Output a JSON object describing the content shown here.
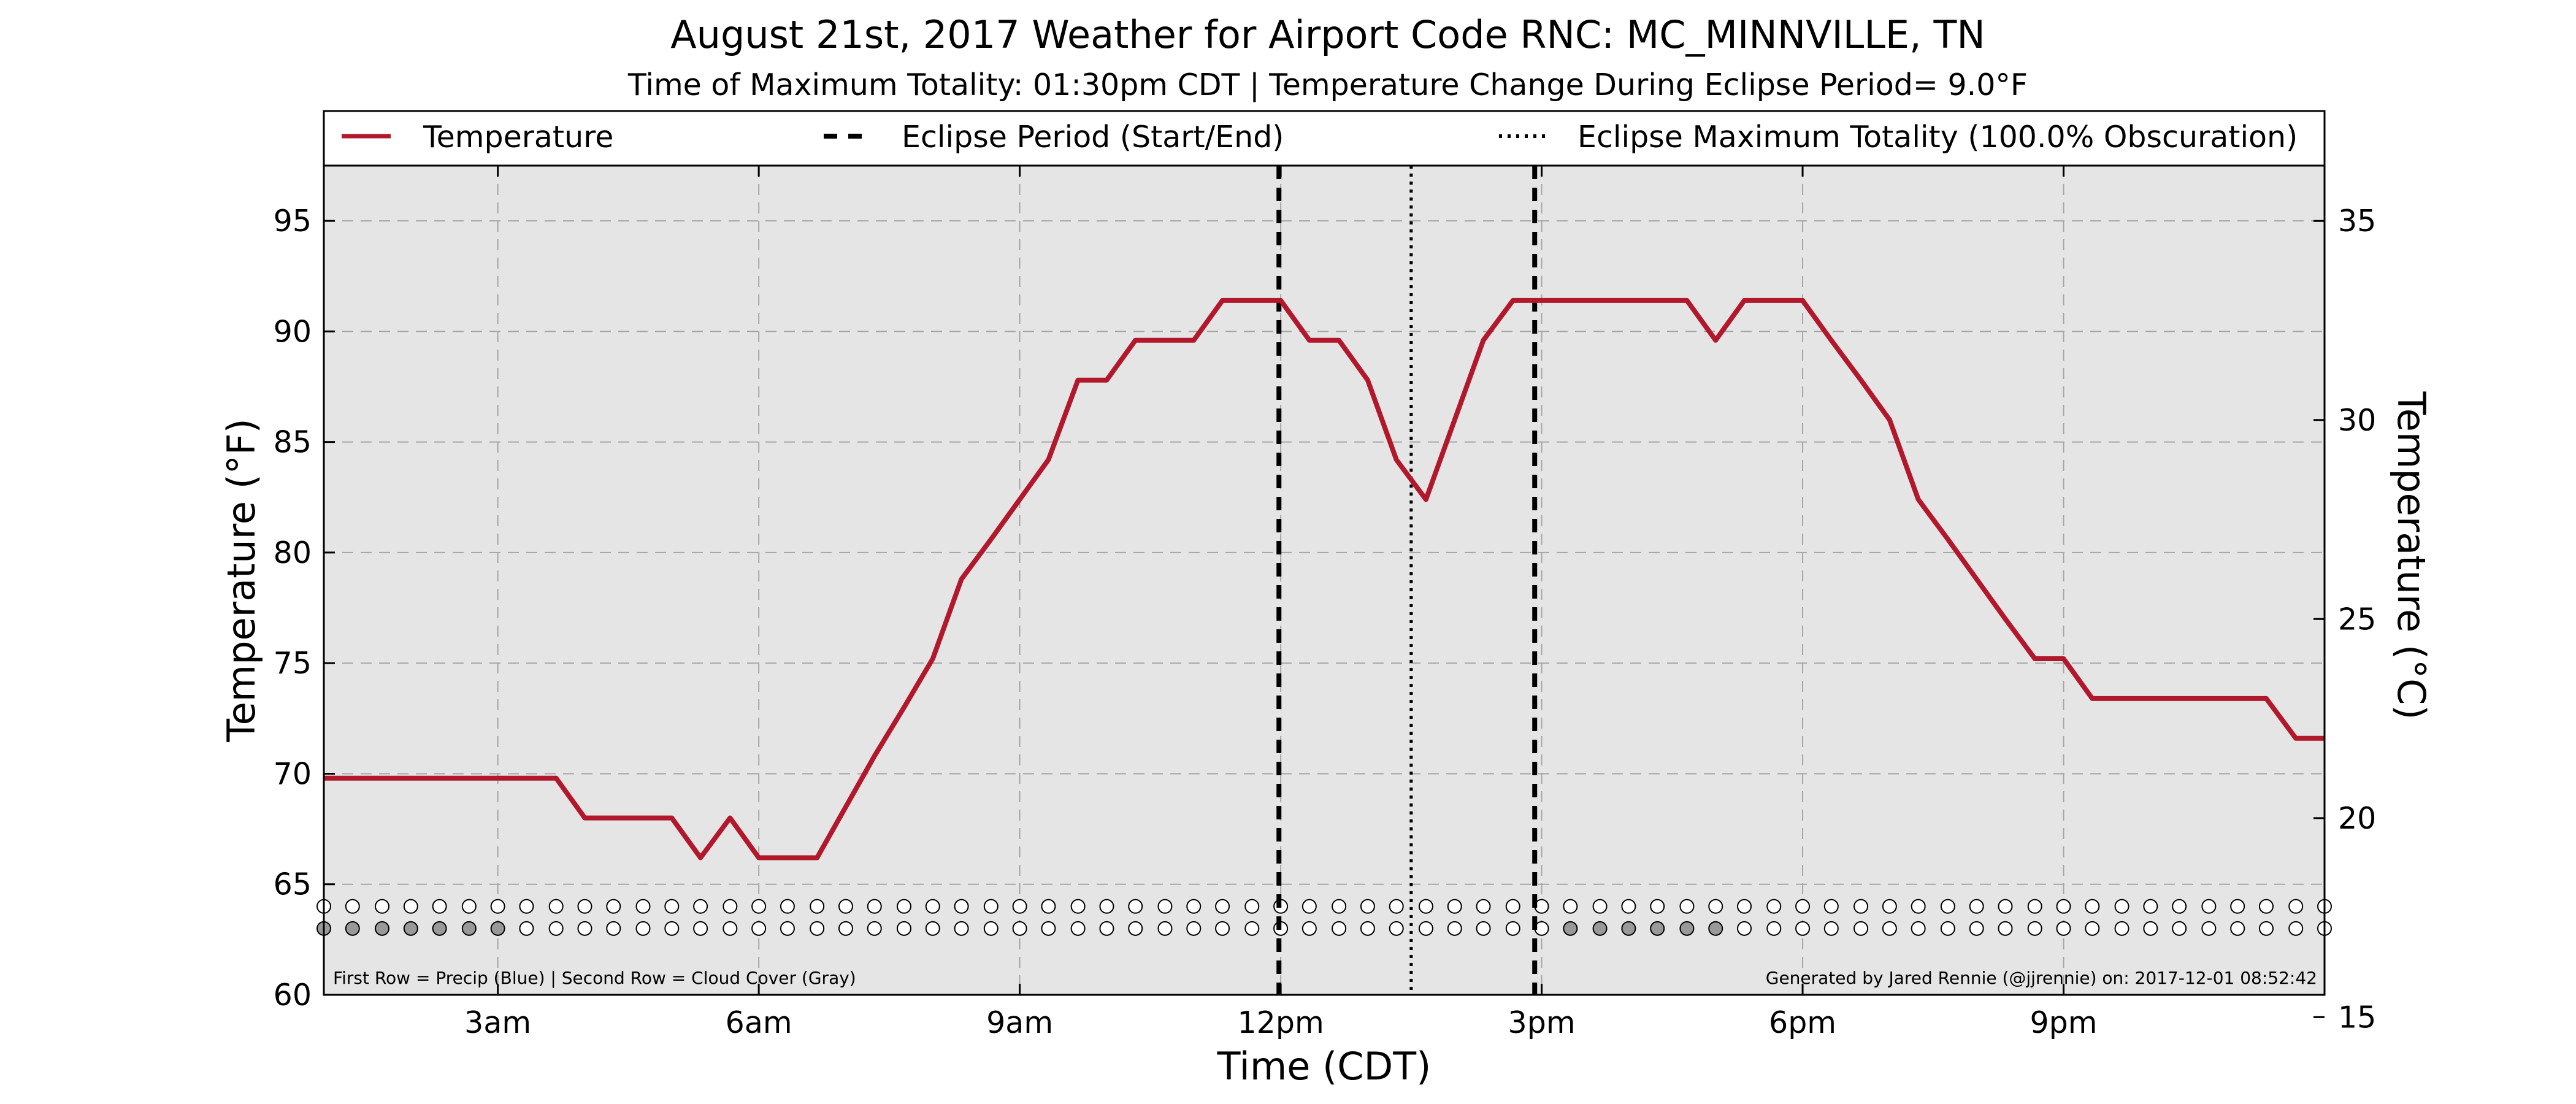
{
  "chart_data": {
    "type": "line",
    "title": "August 21st, 2017 Weather for Airport Code RNC: MC_MINNVILLE, TN",
    "subtitle": "Time of Maximum Totality: 01:30pm CDT | Temperature Change During Eclipse Period= 9.0°F",
    "xlabel": "Time (CDT)",
    "ylabel": "Temperature (°F)",
    "ylabel_right": "Temperature (°C)",
    "xlim": [
      1.0,
      24.0
    ],
    "ylim": [
      60,
      97.5
    ],
    "ylim_right": [
      15.56,
      36.39
    ],
    "x_ticks": [
      {
        "x": 3,
        "label": "3am"
      },
      {
        "x": 6,
        "label": "6am"
      },
      {
        "x": 9,
        "label": "9am"
      },
      {
        "x": 12,
        "label": "12pm"
      },
      {
        "x": 15,
        "label": "3pm"
      },
      {
        "x": 18,
        "label": "6pm"
      },
      {
        "x": 21,
        "label": "9pm"
      }
    ],
    "y_ticks": [
      "60",
      "65",
      "70",
      "75",
      "80",
      "85",
      "90",
      "95"
    ],
    "y_ticks_right": [
      "15",
      "20",
      "25",
      "30",
      "35"
    ],
    "grid": true,
    "legend_position": "top",
    "legend": {
      "temperature": "Temperature",
      "eclipse_period": "Eclipse Period (Start/End)",
      "eclipse_max": "Eclipse Maximum Totality (100.0% Obscuration)"
    },
    "series": [
      {
        "name": "Temperature",
        "color": "#b2182b",
        "x": [
          1.0,
          1.33,
          1.67,
          2.0,
          2.33,
          2.67,
          3.0,
          3.33,
          3.67,
          4.0,
          4.33,
          4.67,
          5.0,
          5.33,
          5.67,
          6.0,
          6.33,
          6.67,
          7.0,
          7.33,
          7.67,
          8.0,
          8.33,
          8.67,
          9.0,
          9.33,
          9.67,
          10.0,
          10.33,
          10.67,
          11.0,
          11.33,
          11.67,
          12.0,
          12.33,
          12.67,
          13.0,
          13.33,
          13.67,
          14.0,
          14.33,
          14.67,
          15.0,
          15.33,
          15.67,
          16.0,
          16.33,
          16.67,
          17.0,
          17.33,
          17.67,
          18.0,
          18.33,
          18.67,
          19.0,
          19.33,
          19.67,
          20.0,
          20.33,
          20.67,
          21.0,
          21.33,
          21.67,
          22.0,
          22.33,
          22.67,
          23.0,
          23.33,
          23.67,
          24.0
        ],
        "values": [
          69.8,
          69.8,
          69.8,
          69.8,
          69.8,
          69.8,
          69.8,
          69.8,
          69.8,
          68.0,
          68.0,
          68.0,
          68.0,
          66.2,
          68.0,
          66.2,
          66.2,
          66.2,
          68.5,
          70.8,
          73.0,
          75.2,
          78.8,
          80.6,
          82.4,
          84.2,
          87.8,
          87.8,
          89.6,
          89.6,
          89.6,
          91.4,
          91.4,
          91.4,
          89.6,
          89.6,
          87.8,
          84.2,
          82.4,
          86.0,
          89.6,
          91.4,
          91.4,
          91.4,
          91.4,
          91.4,
          91.4,
          91.4,
          89.6,
          91.4,
          91.4,
          91.4,
          89.6,
          87.8,
          86.0,
          82.4,
          80.6,
          78.8,
          77.0,
          75.2,
          75.2,
          73.4,
          73.4,
          73.4,
          73.4,
          73.4,
          73.4,
          73.4,
          71.6,
          71.6
        ]
      }
    ],
    "eclipse_start": 11.98,
    "eclipse_end": 14.92,
    "eclipse_max": 13.5,
    "markers": {
      "precip_x": [
        1.0,
        1.33,
        1.67,
        2.0,
        2.33,
        2.67,
        3.0,
        3.33,
        3.67,
        4.0,
        4.33,
        4.67,
        5.0,
        5.33,
        5.67,
        6.0,
        6.33,
        6.67,
        7.0,
        7.33,
        7.67,
        8.0,
        8.33,
        8.67,
        9.0,
        9.33,
        9.67,
        10.0,
        10.33,
        10.67,
        11.0,
        11.33,
        11.67,
        12.0,
        12.33,
        12.67,
        13.0,
        13.33,
        13.67,
        14.0,
        14.33,
        14.67,
        15.0,
        15.33,
        15.67,
        16.0,
        16.33,
        16.67,
        17.0,
        17.33,
        17.67,
        18.0,
        18.33,
        18.67,
        19.0,
        19.33,
        19.67,
        20.0,
        20.33,
        20.67,
        21.0,
        21.33,
        21.67,
        22.0,
        22.33,
        22.67,
        23.0,
        23.33,
        23.67,
        24.0
      ],
      "precip_y": 64.0,
      "cloud_y": 63.0,
      "cloud_gray": [
        1.0,
        1.33,
        1.67,
        2.0,
        2.33,
        2.67,
        3.0,
        15.33,
        15.67,
        16.0,
        16.33,
        16.67,
        17.0
      ],
      "gray_color": "#999999",
      "empty_color": "#ffffff"
    },
    "footnote_left": "First Row = Precip (Blue) | Second Row = Cloud Cover (Gray)",
    "footnote_right": "Generated by Jared Rennie (@jjrennie) on: 2017-12-01 08:52:42"
  }
}
